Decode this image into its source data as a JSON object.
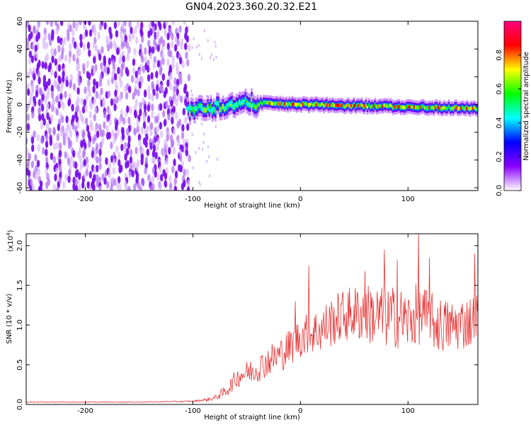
{
  "title": "GN04.2023.360.20.32.E21",
  "colors": {
    "snr_line": "#e83232",
    "spectrogram_noise": "#8a2be2",
    "background": "#ffffff",
    "axis": "#000000"
  },
  "chart_data": [
    {
      "type": "heatmap",
      "xlabel": "Height of straight line (km)",
      "ylabel": "Frequency (Hz)",
      "xlim": [
        -255,
        165
      ],
      "ylim": [
        -62,
        60
      ],
      "x_ticks": [
        -200,
        -100,
        0,
        100
      ],
      "y_ticks": [
        -60,
        -40,
        -20,
        0,
        20,
        40,
        60
      ],
      "grid": false,
      "regions": [
        {
          "label": "broadband noise",
          "x_range": [
            -255,
            -103
          ],
          "y_range": [
            -62,
            60
          ],
          "amplitude": 0.15
        },
        {
          "label": "signal band",
          "x_range": [
            -105,
            165
          ],
          "center_freq_hz": [
            [
              -105,
              -4
            ],
            [
              -50,
              1
            ],
            [
              0,
              0
            ],
            [
              165,
              -3
            ]
          ],
          "bandwidth_hz": 8,
          "amplitude_range": [
            0.2,
            0.95
          ]
        }
      ],
      "colorbar": {
        "label": "Normalized spectral amplitude",
        "range": [
          0.0,
          1.0
        ],
        "ticks": [
          0.0,
          0.2,
          0.4,
          0.6,
          0.8
        ],
        "tick_labels": [
          "0.0",
          "0.2",
          "0.4",
          "0.6",
          "0.8"
        ],
        "colormap": [
          "#ffffff",
          "#8b00ff",
          "#0000ff",
          "#00ffff",
          "#00ff00",
          "#ffff00",
          "#ff0000",
          "#ff007f"
        ]
      }
    },
    {
      "type": "line",
      "xlabel": "Height of straight line (km)",
      "ylabel": "SNR (10 * v/v)",
      "y_multiplier": "(x10^4)",
      "multiplier_base": "(x10",
      "multiplier_exp": "4",
      "multiplier_close": ")",
      "xlim": [
        -255,
        165
      ],
      "ylim": [
        0.0,
        2.15
      ],
      "x_ticks": [
        -200,
        -100,
        0,
        100
      ],
      "y_ticks": [
        0.0,
        0.5,
        1.0,
        1.5,
        2.0
      ],
      "y_tick_labels": [
        "0.0",
        "0.5",
        "1.0",
        "1.5",
        "2.0"
      ],
      "grid": false,
      "series": [
        {
          "color": "#e83232",
          "x": [
            -255,
            -200,
            -150,
            -100,
            -88,
            -80,
            -70,
            -60,
            -55,
            -50,
            -40,
            -30,
            -20,
            -10,
            0,
            10,
            20,
            30,
            40,
            50,
            60,
            70,
            80,
            90,
            100,
            110,
            120,
            130,
            140,
            150,
            160,
            165
          ],
          "y": [
            0.03,
            0.03,
            0.03,
            0.04,
            0.06,
            0.08,
            0.16,
            0.32,
            0.38,
            0.4,
            0.45,
            0.55,
            0.62,
            0.72,
            0.85,
            0.9,
            0.95,
            1.05,
            1.12,
            1.15,
            1.15,
            1.12,
            1.1,
            1.1,
            1.05,
            1.15,
            1.05,
            1.0,
            0.98,
            1.02,
            1.05,
            1.1
          ],
          "amplitude": [
            0.005,
            0.005,
            0.005,
            0.008,
            0.02,
            0.03,
            0.08,
            0.12,
            0.14,
            0.15,
            0.17,
            0.2,
            0.22,
            0.24,
            0.26,
            0.28,
            0.3,
            0.32,
            0.34,
            0.36,
            0.38,
            0.4,
            0.4,
            0.4,
            0.38,
            0.4,
            0.38,
            0.36,
            0.34,
            0.34,
            0.34,
            0.34
          ],
          "peaks": [
            [
              -5,
              1.3
            ],
            [
              8,
              1.75
            ],
            [
              60,
              1.68
            ],
            [
              78,
              1.95
            ],
            [
              90,
              1.82
            ],
            [
              110,
              2.15
            ],
            [
              120,
              1.85
            ],
            [
              162,
              1.9
            ]
          ]
        }
      ]
    }
  ]
}
